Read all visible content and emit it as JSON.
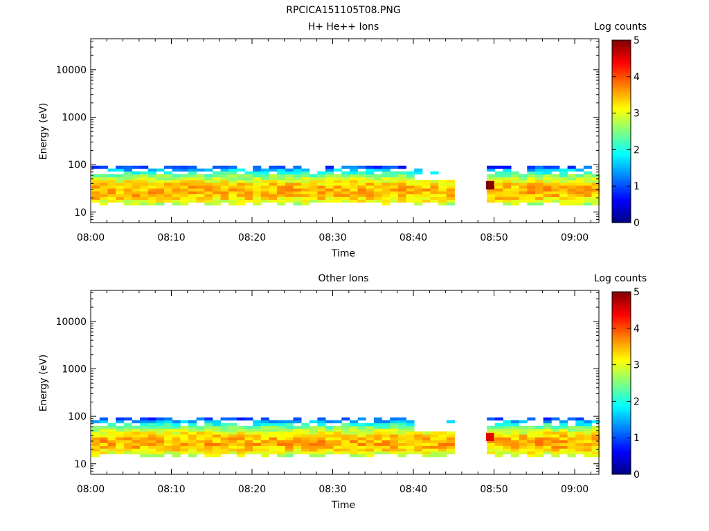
{
  "page_title": "RPCICA151105T08.PNG",
  "chart_data": [
    {
      "type": "heatmap",
      "title": "H+ He++ Ions",
      "xlabel": "Time",
      "ylabel": "Energy (eV)",
      "x_ticks": [
        "08:00",
        "08:10",
        "08:20",
        "08:30",
        "08:40",
        "08:50",
        "09:00"
      ],
      "y_ticks": [
        "10",
        "100",
        "1000",
        "10000"
      ],
      "y_scale": "log",
      "ylim": [
        6,
        45000
      ],
      "colorbar": {
        "label": "Log counts",
        "range": [
          0,
          5
        ],
        "ticks": [
          "0",
          "1",
          "2",
          "3",
          "4",
          "5"
        ]
      },
      "time_range": [
        "08:00",
        "09:03"
      ],
      "data_gap": [
        "08:46",
        "08:49"
      ],
      "band": {
        "energy_min_eV": 14,
        "energy_max_eV": 95,
        "peak_energy_eV": 28,
        "peak_log_counts": 3.5,
        "max_log_counts": 5.0
      }
    },
    {
      "type": "heatmap",
      "title": "Other Ions",
      "xlabel": "Time",
      "ylabel": "Energy (eV)",
      "x_ticks": [
        "08:00",
        "08:10",
        "08:20",
        "08:30",
        "08:40",
        "08:50",
        "09:00"
      ],
      "y_ticks": [
        "10",
        "100",
        "1000",
        "10000"
      ],
      "y_scale": "log",
      "ylim": [
        6,
        45000
      ],
      "colorbar": {
        "label": "Log counts",
        "range": [
          0,
          5
        ],
        "ticks": [
          "0",
          "1",
          "2",
          "3",
          "4",
          "5"
        ]
      },
      "time_range": [
        "08:00",
        "09:03"
      ],
      "data_gap": [
        "08:46",
        "08:49"
      ],
      "band": {
        "energy_min_eV": 14,
        "energy_max_eV": 95,
        "peak_energy_eV": 28,
        "peak_log_counts": 3.5,
        "max_log_counts": 4.5
      }
    }
  ]
}
